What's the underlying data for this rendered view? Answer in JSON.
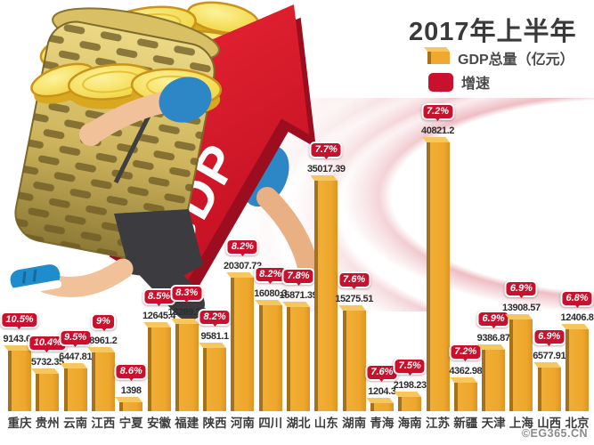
{
  "title": "2017年上半年",
  "legend": {
    "gdp": "GDP总量（亿元）",
    "growth": "增速"
  },
  "arrow_label": "GDP",
  "watermark": "©EG365.CN",
  "colors": {
    "bar_front": "#efa930",
    "bar_side": "#a3721a",
    "bar_top": "#f6c75f",
    "bubble_red": "#c8112c",
    "arrow_red": "#d6192b",
    "arrow_shadow": "#9c0d1f",
    "title_text": "#3a3a3a"
  },
  "chart_data": {
    "type": "bar",
    "title": "2017年上半年",
    "xlabel": "",
    "ylabel": "GDP总量（亿元）",
    "ylim": [
      0,
      41000
    ],
    "grid": false,
    "legend_position": "top-right",
    "categories": [
      "重庆",
      "贵州",
      "云南",
      "江西",
      "宁夏",
      "安徽",
      "福建",
      "陕西",
      "河南",
      "四川",
      "湖北",
      "山东",
      "湖南",
      "青海",
      "海南",
      "江苏",
      "新疆",
      "天津",
      "上海",
      "山西",
      "北京"
    ],
    "series": [
      {
        "name": "GDP总量（亿元）",
        "values": [
          9143.64,
          5732.35,
          6447.81,
          8961.2,
          1398,
          12645.4,
          13289.77,
          9581.1,
          20307.72,
          16080.3,
          15871.39,
          35017.39,
          15275.51,
          1204.3,
          2198.23,
          40821.2,
          4362.98,
          9386.87,
          13908.57,
          6577.91,
          12406.8
        ]
      },
      {
        "name": "增速",
        "values": [
          "10.5%",
          "10.4%",
          "9.5%",
          "9%",
          "8.6%",
          "8.5%",
          "8.3%",
          "8.2%",
          "8.2%",
          "8.2%",
          "7.8%",
          "7.7%",
          "7.6%",
          "7.6%",
          "7.5%",
          "7.2%",
          "7.2%",
          "6.9%",
          "6.9%",
          "6.9%",
          "6.8%"
        ]
      }
    ]
  }
}
